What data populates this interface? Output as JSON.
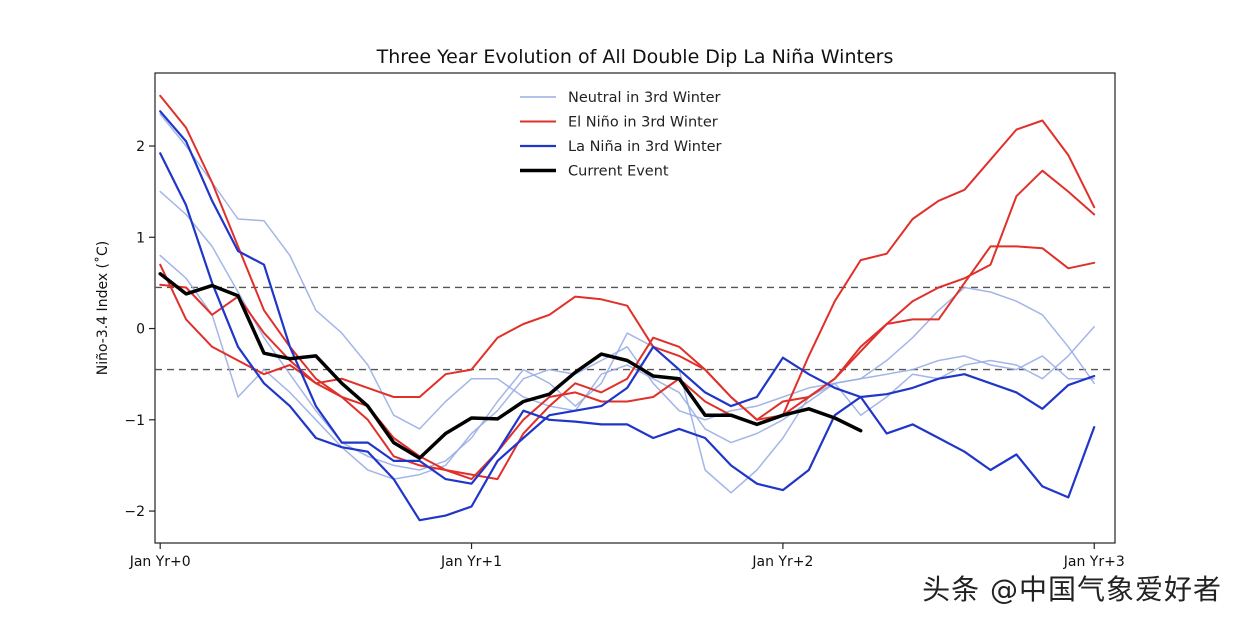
{
  "chart_data": {
    "type": "line",
    "title": "Three Year Evolution of All Double Dip La Niña Winters",
    "ylabel": "Niño-3.4 Index (˚C)",
    "xlabel": "",
    "xlim": [
      -0.2,
      36.8
    ],
    "ylim": [
      -2.35,
      2.8
    ],
    "x_ticks": [
      {
        "value": 0,
        "label": "Jan Yr+0"
      },
      {
        "value": 12,
        "label": "Jan Yr+1"
      },
      {
        "value": 24,
        "label": "Jan Yr+2"
      },
      {
        "value": 36,
        "label": "Jan Yr+3"
      }
    ],
    "y_ticks": [
      {
        "value": -2,
        "label": "−2"
      },
      {
        "value": -1,
        "label": "−1"
      },
      {
        "value": 0,
        "label": "0"
      },
      {
        "value": 1,
        "label": "1"
      },
      {
        "value": 2,
        "label": "2"
      }
    ],
    "thresholds": [
      0.45,
      -0.45
    ],
    "legend": [
      {
        "label": "Neutral in 3rd Winter",
        "color": "#9aaee6",
        "width": 1.6
      },
      {
        "label": "El Niño in 3rd Winter",
        "color": "#e0302a",
        "width": 2.0
      },
      {
        "label": "La Niña in 3rd Winter",
        "color": "#2036c8",
        "width": 2.2
      },
      {
        "label": "Current Event",
        "color": "#000000",
        "width": 3.5
      }
    ],
    "series": [
      {
        "name": "Neutral 1",
        "group": "Neutral in 3rd Winter",
        "color": "#9aaee6",
        "width": 1.5,
        "x": [
          0,
          1,
          2,
          3,
          4,
          5,
          6,
          7,
          8,
          9,
          10,
          11,
          12,
          13,
          14,
          15,
          16,
          17,
          18,
          19,
          20,
          21,
          22,
          23,
          24,
          25,
          26,
          27,
          28,
          29,
          30,
          31,
          32,
          33,
          34,
          35,
          36
        ],
        "y": [
          2.35,
          2.0,
          1.6,
          1.2,
          1.18,
          0.8,
          0.2,
          -0.05,
          -0.4,
          -0.95,
          -1.1,
          -0.8,
          -0.55,
          -0.55,
          -0.75,
          -0.85,
          -0.9,
          -0.5,
          -0.4,
          -0.55,
          -0.7,
          -1.1,
          -1.25,
          -1.15,
          -1.0,
          -0.8,
          -0.6,
          -0.55,
          -0.35,
          -0.1,
          0.2,
          0.45,
          0.4,
          0.3,
          0.15,
          -0.2,
          -0.6
        ]
      },
      {
        "name": "Neutral 2",
        "group": "Neutral in 3rd Winter",
        "color": "#9aaee6",
        "width": 1.5,
        "x": [
          0,
          1,
          2,
          3,
          4,
          5,
          6,
          7,
          8,
          9,
          10,
          11,
          12,
          13,
          14,
          15,
          16,
          17,
          18,
          19,
          20,
          21,
          22,
          23,
          24,
          25,
          26,
          27,
          28,
          29,
          30,
          31,
          32,
          33,
          34,
          35,
          36
        ],
        "y": [
          1.5,
          1.25,
          0.9,
          0.4,
          -0.1,
          -0.5,
          -0.9,
          -1.25,
          -1.4,
          -1.5,
          -1.55,
          -1.45,
          -1.2,
          -0.8,
          -0.45,
          -0.6,
          -0.85,
          -0.6,
          -0.05,
          -0.2,
          -0.45,
          -1.55,
          -1.8,
          -1.55,
          -1.2,
          -0.75,
          -0.6,
          -0.55,
          -0.5,
          -0.45,
          -0.35,
          -0.3,
          -0.4,
          -0.45,
          -0.3,
          -0.55,
          -0.55
        ]
      },
      {
        "name": "Neutral 3",
        "group": "Neutral in 3rd Winter",
        "color": "#9aaee6",
        "width": 1.5,
        "x": [
          0,
          1,
          2,
          3,
          4,
          5,
          6,
          7,
          8,
          9,
          10,
          11,
          12,
          13,
          14,
          15,
          16,
          17,
          18,
          19,
          20,
          21,
          22,
          23,
          24,
          25,
          26,
          27,
          28,
          29,
          30,
          31,
          32,
          33,
          34,
          35,
          36
        ],
        "y": [
          0.8,
          0.55,
          0.15,
          -0.75,
          -0.45,
          -0.7,
          -1.0,
          -1.3,
          -1.55,
          -1.65,
          -1.6,
          -1.5,
          -1.15,
          -0.9,
          -0.55,
          -0.45,
          -0.5,
          -0.35,
          -0.2,
          -0.6,
          -0.9,
          -1.0,
          -0.9,
          -0.85,
          -0.75,
          -0.65,
          -0.6,
          -0.95,
          -0.75,
          -0.5,
          -0.55,
          -0.4,
          -0.35,
          -0.4,
          -0.55,
          -0.3,
          0.02
        ]
      },
      {
        "name": "El Niño 1",
        "group": "El Niño in 3rd Winter",
        "color": "#e0302a",
        "width": 2.0,
        "x": [
          0,
          1,
          2,
          3,
          4,
          5,
          6,
          7,
          8,
          9,
          10,
          11,
          12,
          13,
          14,
          15,
          16,
          17,
          18,
          19,
          20,
          21,
          22,
          23,
          24,
          25,
          26,
          27,
          28,
          29,
          30,
          31,
          32,
          33,
          34,
          35,
          36
        ],
        "y": [
          2.55,
          2.2,
          1.6,
          0.9,
          0.2,
          -0.2,
          -0.55,
          -0.75,
          -0.85,
          -1.2,
          -1.4,
          -1.55,
          -1.65,
          -1.35,
          -1.0,
          -0.75,
          -0.7,
          -0.8,
          -0.8,
          -0.75,
          -0.55,
          -0.8,
          -0.95,
          -1.05,
          -0.95,
          -0.3,
          0.3,
          0.75,
          0.82,
          1.2,
          1.4,
          1.52,
          1.85,
          2.18,
          2.28,
          1.9,
          1.33
        ]
      },
      {
        "name": "El Niño 2",
        "group": "El Niño in 3rd Winter",
        "color": "#e0302a",
        "width": 2.0,
        "x": [
          0,
          1,
          2,
          3,
          4,
          5,
          6,
          7,
          8,
          9,
          10,
          11,
          12,
          13,
          14,
          15,
          16,
          17,
          18,
          19,
          20,
          21,
          22,
          23,
          24,
          25,
          26,
          27,
          28,
          29,
          30,
          31,
          32,
          33,
          34,
          35,
          36
        ],
        "y": [
          0.48,
          0.45,
          0.15,
          0.35,
          -0.05,
          -0.35,
          -0.6,
          -0.75,
          -1.0,
          -1.4,
          -1.5,
          -1.55,
          -1.6,
          -1.65,
          -1.15,
          -0.85,
          -0.6,
          -0.7,
          -0.55,
          -0.1,
          -0.2,
          -0.45,
          -0.75,
          -1.0,
          -0.95,
          -0.75,
          -0.55,
          -0.25,
          0.05,
          0.1,
          0.1,
          0.5,
          0.9,
          0.9,
          0.88,
          0.66,
          0.72
        ]
      },
      {
        "name": "El Niño 3",
        "group": "El Niño in 3rd Winter",
        "color": "#e0302a",
        "width": 2.0,
        "x": [
          0,
          1,
          2,
          3,
          4,
          5,
          6,
          7,
          8,
          9,
          10,
          11,
          12,
          13,
          14,
          15,
          16,
          17,
          18,
          19,
          20,
          21,
          22,
          23,
          24,
          25,
          26,
          27,
          28,
          29,
          30,
          31,
          32,
          33,
          34,
          35,
          36
        ],
        "y": [
          0.7,
          0.1,
          -0.2,
          -0.35,
          -0.5,
          -0.4,
          -0.6,
          -0.55,
          -0.65,
          -0.75,
          -0.75,
          -0.5,
          -0.45,
          -0.1,
          0.05,
          0.15,
          0.35,
          0.32,
          0.25,
          -0.2,
          -0.3,
          -0.45,
          -0.75,
          -1.0,
          -0.8,
          -0.75,
          -0.55,
          -0.2,
          0.05,
          0.3,
          0.45,
          0.55,
          0.7,
          1.45,
          1.73,
          1.5,
          1.25
        ]
      },
      {
        "name": "La Niña 1",
        "group": "La Niña in 3rd Winter",
        "color": "#2036c8",
        "width": 2.2,
        "x": [
          0,
          1,
          2,
          3,
          4,
          5,
          6,
          7,
          8,
          9,
          10,
          11,
          12,
          13,
          14,
          15,
          16,
          17,
          18,
          19,
          20,
          21,
          22,
          23,
          24,
          25,
          26,
          27,
          28,
          29,
          30,
          31,
          32,
          33,
          34,
          35,
          36
        ],
        "y": [
          2.38,
          2.05,
          1.4,
          0.85,
          0.7,
          -0.2,
          -0.85,
          -1.25,
          -1.25,
          -1.45,
          -1.45,
          -1.65,
          -1.7,
          -1.35,
          -0.9,
          -1.0,
          -1.02,
          -1.05,
          -1.05,
          -1.2,
          -1.1,
          -1.2,
          -1.5,
          -1.7,
          -1.77,
          -1.55,
          -0.95,
          -0.75,
          -1.15,
          -1.05,
          -1.2,
          -1.35,
          -1.55,
          -1.38,
          -1.73,
          -1.85,
          -1.08
        ]
      },
      {
        "name": "La Niña 2",
        "group": "La Niña in 3rd Winter",
        "color": "#2036c8",
        "width": 2.2,
        "x": [
          0,
          1,
          2,
          3,
          4,
          5,
          6,
          7,
          8,
          9,
          10,
          11,
          12,
          13,
          14,
          15,
          16,
          17,
          18,
          19,
          20,
          21,
          22,
          23,
          24,
          25,
          26,
          27,
          28,
          29,
          30,
          31,
          32,
          33,
          34,
          35,
          36
        ],
        "y": [
          1.92,
          1.35,
          0.5,
          -0.2,
          -0.6,
          -0.85,
          -1.2,
          -1.3,
          -1.35,
          -1.65,
          -2.1,
          -2.05,
          -1.95,
          -1.45,
          -1.2,
          -0.95,
          -0.9,
          -0.85,
          -0.65,
          -0.2,
          -0.45,
          -0.7,
          -0.85,
          -0.75,
          -0.32,
          -0.5,
          -0.65,
          -0.75,
          -0.72,
          -0.65,
          -0.55,
          -0.5,
          -0.6,
          -0.7,
          -0.88,
          -0.62,
          -0.52
        ]
      },
      {
        "name": "Current Event",
        "group": "Current Event",
        "color": "#000000",
        "width": 3.5,
        "x": [
          0,
          1,
          2,
          3,
          4,
          5,
          6,
          7,
          8,
          9,
          10,
          11,
          12,
          13,
          14,
          15,
          16,
          17,
          18,
          19,
          20,
          21,
          22,
          23,
          24,
          25,
          26,
          27
        ],
        "y": [
          0.6,
          0.38,
          0.47,
          0.36,
          -0.27,
          -0.33,
          -0.3,
          -0.6,
          -0.85,
          -1.25,
          -1.42,
          -1.15,
          -0.98,
          -0.99,
          -0.8,
          -0.72,
          -0.48,
          -0.28,
          -0.35,
          -0.52,
          -0.55,
          -0.95,
          -0.95,
          -1.05,
          -0.95,
          -0.88,
          -0.98,
          -1.12
        ]
      }
    ]
  },
  "watermark": "头条 @中国气象爱好者"
}
